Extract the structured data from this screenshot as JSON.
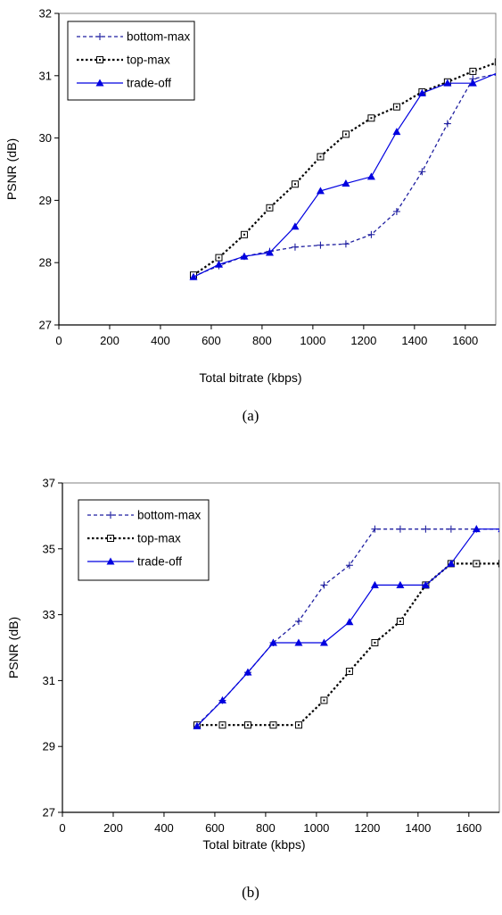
{
  "chart_data": [
    {
      "type": "line",
      "caption": "(a)",
      "xlabel": "Total bitrate (kbps)",
      "ylabel": "PSNR (dB)",
      "xlim": [
        0,
        1720
      ],
      "ylim": [
        27,
        32
      ],
      "xticks": [
        0,
        200,
        400,
        600,
        800,
        1000,
        1200,
        1400,
        1600
      ],
      "yticks": [
        27,
        28,
        29,
        30,
        31,
        32
      ],
      "legend_position": "top-left",
      "grid": false,
      "series": [
        {
          "name": "bottom-max",
          "color": "#1f1fa0",
          "marker": "plus",
          "dash": "short-dash",
          "x": [
            530,
            630,
            730,
            830,
            930,
            1030,
            1130,
            1230,
            1330,
            1430,
            1530,
            1630,
            1730
          ],
          "y": [
            27.78,
            27.95,
            28.1,
            28.18,
            28.25,
            28.28,
            28.3,
            28.45,
            28.82,
            29.46,
            30.23,
            30.95,
            31.03
          ]
        },
        {
          "name": "top-max",
          "color": "#000000",
          "marker": "square-dot",
          "dash": "dotted",
          "x": [
            530,
            630,
            730,
            830,
            930,
            1030,
            1130,
            1230,
            1330,
            1430,
            1530,
            1630,
            1730
          ],
          "y": [
            27.8,
            28.08,
            28.45,
            28.88,
            29.26,
            29.7,
            30.06,
            30.32,
            30.5,
            30.74,
            30.9,
            31.07,
            31.22
          ]
        },
        {
          "name": "trade-off",
          "color": "#0000e0",
          "marker": "triangle",
          "dash": "solid",
          "x": [
            530,
            630,
            730,
            830,
            930,
            1030,
            1130,
            1230,
            1330,
            1430,
            1530,
            1630,
            1730
          ],
          "y": [
            27.77,
            27.97,
            28.1,
            28.16,
            28.58,
            29.15,
            29.27,
            29.38,
            30.1,
            30.72,
            30.88,
            30.88,
            31.05
          ]
        }
      ]
    },
    {
      "type": "line",
      "caption": "(b)",
      "xlabel": "Total bitrate (kbps)",
      "ylabel": "PSNR (dB)",
      "xlim": [
        0,
        1720
      ],
      "ylim": [
        27,
        37
      ],
      "xticks": [
        0,
        200,
        400,
        600,
        800,
        1000,
        1200,
        1400,
        1600
      ],
      "yticks": [
        27,
        29,
        31,
        33,
        35,
        37
      ],
      "legend_position": "top-left",
      "grid": false,
      "series": [
        {
          "name": "bottom-max",
          "color": "#1f1fa0",
          "marker": "plus",
          "dash": "short-dash",
          "x": [
            530,
            630,
            730,
            830,
            930,
            1030,
            1130,
            1230,
            1330,
            1430,
            1530,
            1630,
            1730
          ],
          "y": [
            29.65,
            30.4,
            31.25,
            32.15,
            32.8,
            33.9,
            34.5,
            35.6,
            35.6,
            35.6,
            35.6,
            35.6,
            35.6
          ]
        },
        {
          "name": "top-max",
          "color": "#000000",
          "marker": "square-dot",
          "dash": "dotted",
          "x": [
            530,
            630,
            730,
            830,
            930,
            1030,
            1130,
            1230,
            1330,
            1430,
            1530,
            1630,
            1730
          ],
          "y": [
            29.65,
            29.65,
            29.65,
            29.65,
            29.65,
            30.4,
            31.28,
            32.15,
            32.8,
            33.9,
            34.55,
            34.55,
            34.55
          ]
        },
        {
          "name": "trade-off",
          "color": "#0000e0",
          "marker": "triangle",
          "dash": "solid",
          "x": [
            530,
            630,
            730,
            830,
            930,
            1030,
            1130,
            1230,
            1330,
            1430,
            1530,
            1630,
            1730
          ],
          "y": [
            29.62,
            30.4,
            31.25,
            32.15,
            32.15,
            32.15,
            32.78,
            33.9,
            33.9,
            33.9,
            34.55,
            35.6,
            35.6
          ]
        }
      ]
    }
  ]
}
